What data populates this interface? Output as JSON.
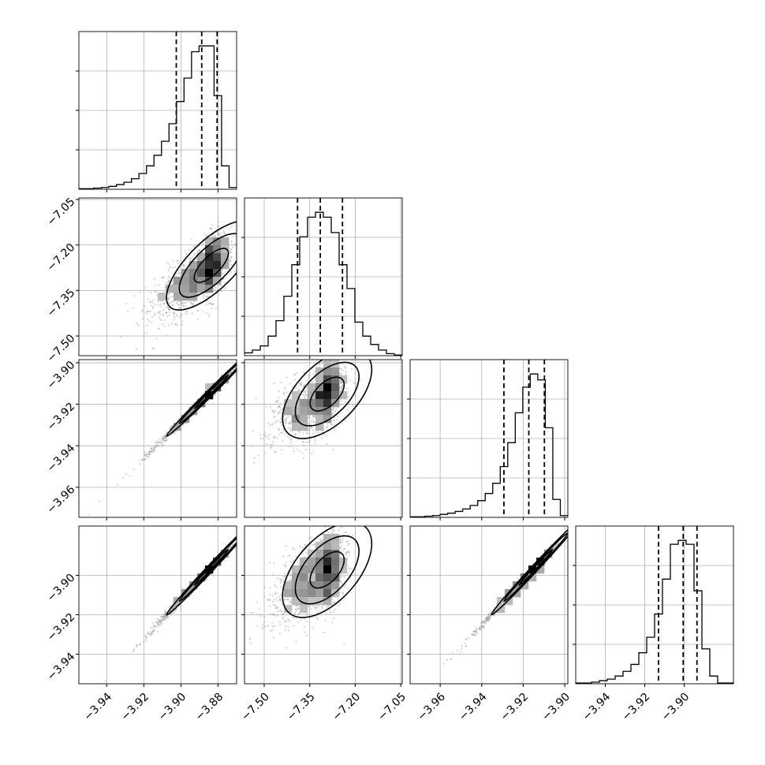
{
  "chart_data": {
    "type": "corner",
    "grid": true,
    "parameters": [
      {
        "index": 0,
        "range": [
          -3.955,
          -3.87
        ],
        "ticks": [
          -3.94,
          -3.92,
          -3.9,
          -3.88
        ],
        "tick_labels": [
          "−3.94",
          "−3.92",
          "−3.90",
          "−3.88"
        ],
        "quantiles": [
          -3.9025,
          -3.8888,
          -3.8805
        ]
      },
      {
        "index": 1,
        "range": [
          -7.565,
          -7.045
        ],
        "ticks": [
          -7.5,
          -7.35,
          -7.2,
          -7.05
        ],
        "tick_labels": [
          "−7.50",
          "−7.35",
          "−7.20",
          "−7.05"
        ],
        "quantiles": [
          -7.39,
          -7.315,
          -7.242
        ]
      },
      {
        "index": 2,
        "range": [
          -3.9745,
          -3.8985
        ],
        "ticks": [
          -3.96,
          -3.94,
          -3.92,
          -3.9
        ],
        "tick_labels": [
          "−3.96",
          "−3.94",
          "−3.92",
          "−3.90"
        ],
        "quantiles": [
          -3.9293,
          -3.9173,
          -3.9098
        ]
      },
      {
        "index": 3,
        "range": [
          -3.955,
          -3.875
        ],
        "ticks": [
          -3.94,
          -3.92,
          -3.9
        ],
        "tick_labels": [
          "−3.94",
          "−3.92",
          "−3.90"
        ],
        "quantiles": [
          -3.913,
          -3.9005,
          -3.8935
        ]
      }
    ],
    "histograms": [
      {
        "index": 0,
        "counts": [
          1,
          1,
          2,
          3,
          5,
          8,
          12,
          18,
          27,
          40,
          58,
          82,
          112,
          150,
          190,
          235,
          245,
          245,
          160,
          40,
          3
        ]
      },
      {
        "index": 1,
        "counts": [
          4,
          8,
          14,
          28,
          50,
          85,
          130,
          170,
          198,
          205,
          198,
          176,
          130,
          96,
          48,
          28,
          16,
          8,
          3,
          1
        ]
      },
      {
        "index": 2,
        "counts": [
          1,
          1,
          2,
          3,
          5,
          7,
          10,
          14,
          20,
          28,
          40,
          57,
          85,
          125,
          175,
          218,
          240,
          230,
          150,
          30,
          3
        ]
      },
      {
        "index": 3,
        "counts": [
          1,
          1,
          2,
          4,
          6,
          10,
          16,
          25,
          40,
          60,
          90,
          135,
          180,
          185,
          180,
          120,
          45,
          10,
          1,
          1
        ]
      }
    ],
    "pairs": [
      {
        "row": 1,
        "col": 0,
        "center": [
          -3.8865,
          -7.28
        ],
        "scale": [
          0.0115,
          0.07
        ],
        "corr": 0.72
      },
      {
        "row": 2,
        "col": 0,
        "center": [
          -3.8865,
          -3.9165
        ],
        "scale": [
          0.0115,
          0.0102
        ],
        "corr": 0.995
      },
      {
        "row": 2,
        "col": 1,
        "center": [
          -7.31,
          -3.9165
        ],
        "scale": [
          0.07,
          0.0102
        ],
        "corr": 0.55
      },
      {
        "row": 3,
        "col": 0,
        "center": [
          -3.8865,
          -3.8988
        ],
        "scale": [
          0.0115,
          0.0115
        ],
        "corr": 0.995
      },
      {
        "row": 3,
        "col": 1,
        "center": [
          -7.31,
          -3.8988
        ],
        "scale": [
          0.07,
          0.0115
        ],
        "corr": 0.55
      },
      {
        "row": 3,
        "col": 2,
        "center": [
          -3.9165,
          -3.8988
        ],
        "scale": [
          0.0102,
          0.0115
        ],
        "corr": 0.995
      }
    ],
    "colors": {
      "line": "#000000",
      "points": "#9e9e9e",
      "grid": "#b0b0b0"
    }
  }
}
